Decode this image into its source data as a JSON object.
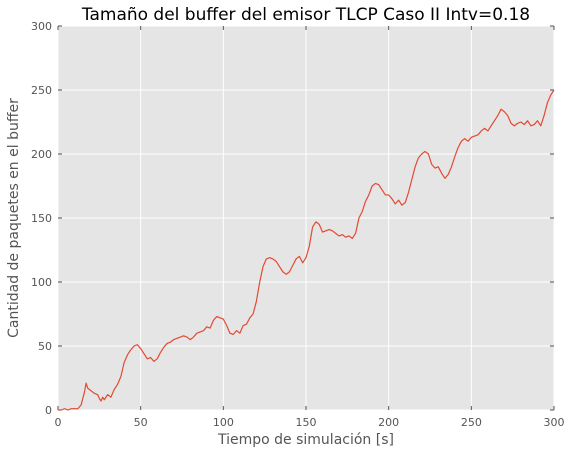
{
  "chart_data": {
    "type": "line",
    "title": "Tamaño del buffer del emisor TLCP Caso II Intv=0.18",
    "xlabel": "Tiempo de simulación [s]",
    "ylabel": "Cantidad de paquetes en el buffer",
    "xlim": [
      0,
      300
    ],
    "ylim": [
      0,
      300
    ],
    "xticks": [
      0,
      50,
      100,
      150,
      200,
      250,
      300
    ],
    "yticks": [
      0,
      50,
      100,
      150,
      200,
      250,
      300
    ],
    "xtick_labels": [
      "0",
      "50",
      "100",
      "150",
      "200",
      "250",
      "300"
    ],
    "ytick_labels": [
      "0",
      "50",
      "100",
      "150",
      "200",
      "250",
      "300"
    ],
    "grid": true,
    "background_color": "#e5e5e5",
    "grid_color": "#ffffff",
    "line_color": "#e24a33",
    "series": [
      {
        "x": [
          0,
          2,
          4,
          6,
          8,
          10,
          12,
          14,
          16,
          17,
          18,
          19,
          20,
          22,
          24,
          25,
          26,
          27,
          28,
          30,
          32,
          34,
          36,
          38,
          40,
          42,
          44,
          46,
          48,
          50,
          52,
          54,
          56,
          58,
          60,
          62,
          64,
          66,
          68,
          70,
          72,
          74,
          76,
          78,
          80,
          82,
          84,
          86,
          88,
          90,
          92,
          94,
          96,
          98,
          100,
          102,
          104,
          106,
          108,
          110,
          112,
          114,
          116,
          118,
          120,
          122,
          124,
          126,
          128,
          130,
          132,
          134,
          136,
          138,
          140,
          142,
          144,
          146,
          148,
          150,
          152,
          154,
          156,
          158,
          160,
          162,
          164,
          166,
          168,
          170,
          172,
          174,
          176,
          178,
          180,
          182,
          184,
          186,
          188,
          190,
          192,
          194,
          196,
          198,
          200,
          202,
          204,
          206,
          208,
          210,
          212,
          214,
          216,
          218,
          220,
          222,
          224,
          226,
          228,
          230,
          232,
          234,
          236,
          238,
          240,
          242,
          244,
          246,
          248,
          250,
          252,
          254,
          256,
          258,
          260,
          262,
          264,
          266,
          268,
          270,
          272,
          274,
          276,
          278,
          280,
          282,
          284,
          286,
          288,
          290,
          292,
          294,
          296,
          298,
          299,
          300
        ],
        "y": [
          0,
          0,
          1,
          0,
          1,
          1,
          1,
          4,
          14,
          21,
          17,
          16,
          15,
          13,
          12,
          9,
          7,
          10,
          8,
          12,
          10,
          16,
          20,
          26,
          37,
          43,
          47,
          50,
          51,
          48,
          44,
          40,
          41,
          38,
          40,
          45,
          49,
          52,
          53,
          55,
          56,
          57,
          58,
          57,
          55,
          57,
          60,
          61,
          62,
          65,
          64,
          70,
          73,
          72,
          71,
          66,
          60,
          59,
          62,
          60,
          66,
          67,
          72,
          75,
          85,
          100,
          112,
          118,
          119,
          118,
          116,
          112,
          108,
          106,
          108,
          113,
          118,
          120,
          115,
          119,
          128,
          143,
          147,
          145,
          139,
          140,
          141,
          140,
          138,
          136,
          137,
          135,
          136,
          134,
          138,
          150,
          155,
          163,
          168,
          175,
          177,
          176,
          172,
          168,
          168,
          165,
          161,
          164,
          160,
          162,
          170,
          180,
          190,
          197,
          200,
          202,
          200,
          192,
          189,
          190,
          185,
          181,
          184,
          190,
          198,
          205,
          210,
          212,
          210,
          213,
          214,
          215,
          218,
          220,
          218,
          222,
          226,
          230,
          235,
          233,
          230,
          224,
          222,
          224,
          225,
          223,
          226,
          222,
          223,
          226,
          222,
          230,
          240,
          246,
          248,
          250
        ]
      }
    ]
  }
}
